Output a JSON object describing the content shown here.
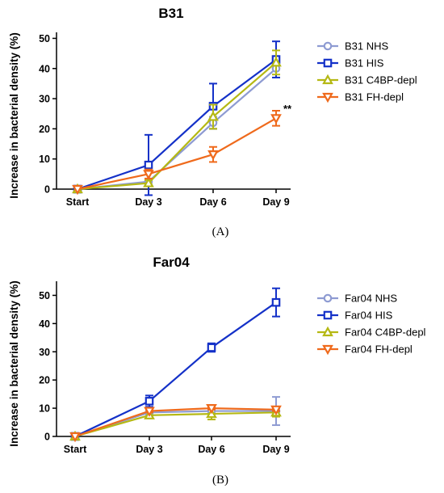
{
  "colors": {
    "NHS": "#8e9bd2",
    "HIS": "#1431c8",
    "C4BP-depl": "#b5b814",
    "FH-depl": "#ef6a1c",
    "axis": "#000000"
  },
  "chart_data": [
    {
      "type": "line",
      "title": "B31",
      "ylabel": "Increase in bacterial density (%)",
      "xlabel": "",
      "categories": [
        "Start",
        "Day 3",
        "Day 6",
        "Day 9"
      ],
      "ylim": [
        0,
        52
      ],
      "yticks": [
        0,
        10,
        20,
        30,
        40,
        50
      ],
      "grid": false,
      "legend_placement": "right",
      "panel_label": "(A)",
      "annotations": [
        {
          "text": "**",
          "category": "Day 9",
          "series": "B31 FH-depl"
        }
      ],
      "series": [
        {
          "name": "B31 NHS",
          "key": "NHS",
          "marker": "circle",
          "values": [
            0,
            2.5,
            22,
            40
          ],
          "errors": [
            0,
            1,
            2,
            3
          ]
        },
        {
          "name": "B31 HIS",
          "key": "HIS",
          "marker": "square",
          "values": [
            0,
            8,
            27.5,
            43
          ],
          "errors": [
            0,
            10,
            7.5,
            6
          ]
        },
        {
          "name": "B31 C4BP-depl",
          "key": "C4BP-depl",
          "marker": "triangle-up",
          "values": [
            0,
            2,
            24,
            42
          ],
          "errors": [
            0,
            1,
            4,
            4
          ]
        },
        {
          "name": "B31 FH-depl",
          "key": "FH-depl",
          "marker": "triangle-down",
          "values": [
            0,
            5,
            11.5,
            23.5
          ],
          "errors": [
            0,
            1.5,
            2.5,
            2.5
          ]
        }
      ]
    },
    {
      "type": "line",
      "title": "Far04",
      "ylabel": "Increase in bacterial density (%)",
      "xlabel": "",
      "categories": [
        "Start",
        "Day 3",
        "Day 6",
        "Day 9"
      ],
      "ylim": [
        0,
        55
      ],
      "yticks": [
        0,
        10,
        20,
        30,
        40,
        50
      ],
      "grid": false,
      "legend_placement": "right",
      "panel_label": "(B)",
      "annotations": [],
      "series": [
        {
          "name": "Far04 NHS",
          "key": "NHS",
          "marker": "circle",
          "values": [
            0,
            8.5,
            9,
            9
          ],
          "errors": [
            0,
            1,
            1,
            5
          ]
        },
        {
          "name": "Far04 HIS",
          "key": "HIS",
          "marker": "square",
          "values": [
            0,
            12.5,
            31.5,
            47.5
          ],
          "errors": [
            0,
            2,
            1.5,
            5
          ]
        },
        {
          "name": "Far04 C4BP-depl",
          "key": "C4BP-depl",
          "marker": "triangle-up",
          "values": [
            0,
            7.5,
            8,
            8.5
          ],
          "errors": [
            0,
            1,
            2,
            1.5
          ]
        },
        {
          "name": "Far04 FH-depl",
          "key": "FH-depl",
          "marker": "triangle-down",
          "values": [
            0,
            9,
            10,
            9.5
          ],
          "errors": [
            0,
            0.5,
            0.5,
            0.5
          ]
        }
      ]
    }
  ]
}
